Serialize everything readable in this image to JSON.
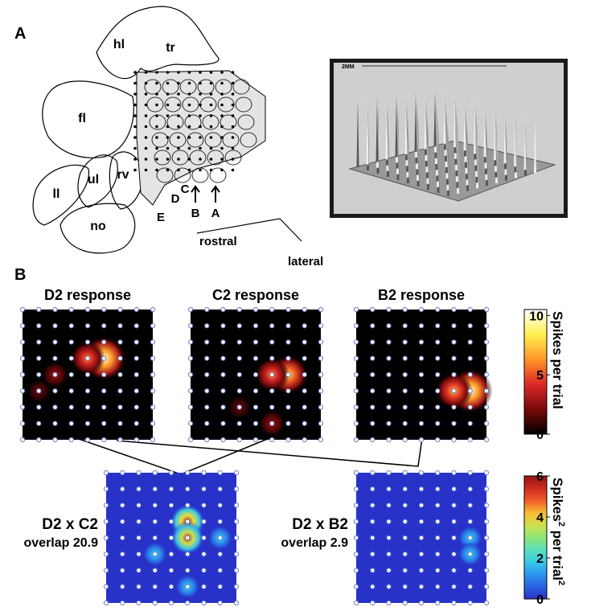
{
  "panel_a": {
    "label": "A",
    "regions": [
      "hl",
      "tr",
      "fl",
      "ll",
      "ul",
      "rv",
      "no"
    ],
    "rows": [
      "E",
      "D",
      "C",
      "B",
      "A"
    ],
    "directions": [
      "rostral",
      "lateral"
    ],
    "photo_scale": "2MM"
  },
  "panel_b": {
    "label": "B",
    "heatmaps": [
      {
        "title": "D2 response",
        "scale": "hot",
        "peaks": [
          {
            "col": 5,
            "row": 3,
            "value": 10
          },
          {
            "col": 4,
            "row": 3,
            "value": 6
          },
          {
            "col": 2,
            "row": 4,
            "value": 3
          },
          {
            "col": 1,
            "row": 5,
            "value": 2
          }
        ]
      },
      {
        "title": "C2 response",
        "scale": "hot",
        "peaks": [
          {
            "col": 6,
            "row": 4,
            "value": 8
          },
          {
            "col": 5,
            "row": 4,
            "value": 6
          },
          {
            "col": 5,
            "row": 7,
            "value": 3
          },
          {
            "col": 3,
            "row": 6,
            "value": 2
          }
        ]
      },
      {
        "title": "B2 response",
        "scale": "hot",
        "peaks": [
          {
            "col": 7,
            "row": 5,
            "value": 10
          },
          {
            "col": 6,
            "row": 5,
            "value": 7
          }
        ]
      },
      {
        "title": "D2 x C2",
        "subtitle": "overlap 20.9",
        "scale": "jet",
        "peaks": [
          {
            "col": 5,
            "row": 3,
            "value": 6
          },
          {
            "col": 5,
            "row": 4,
            "value": 5.5
          },
          {
            "col": 3,
            "row": 5,
            "value": 2
          },
          {
            "col": 5,
            "row": 7,
            "value": 2
          },
          {
            "col": 7,
            "row": 4,
            "value": 2
          }
        ]
      },
      {
        "title": "D2 x B2",
        "subtitle": "overlap 2.9",
        "scale": "jet",
        "peaks": [
          {
            "col": 7,
            "row": 4,
            "value": 2
          },
          {
            "col": 7,
            "row": 5,
            "value": 2
          }
        ]
      }
    ],
    "colorbars": [
      {
        "label": "Spikes per trial",
        "lim": [
          0,
          10.5
        ],
        "ticks": [
          0,
          5,
          10
        ]
      },
      {
        "label": [
          "Spikes",
          "2",
          " per trial",
          "2"
        ],
        "lim": [
          0,
          6
        ],
        "ticks": [
          0,
          2,
          4,
          6
        ]
      }
    ]
  }
}
